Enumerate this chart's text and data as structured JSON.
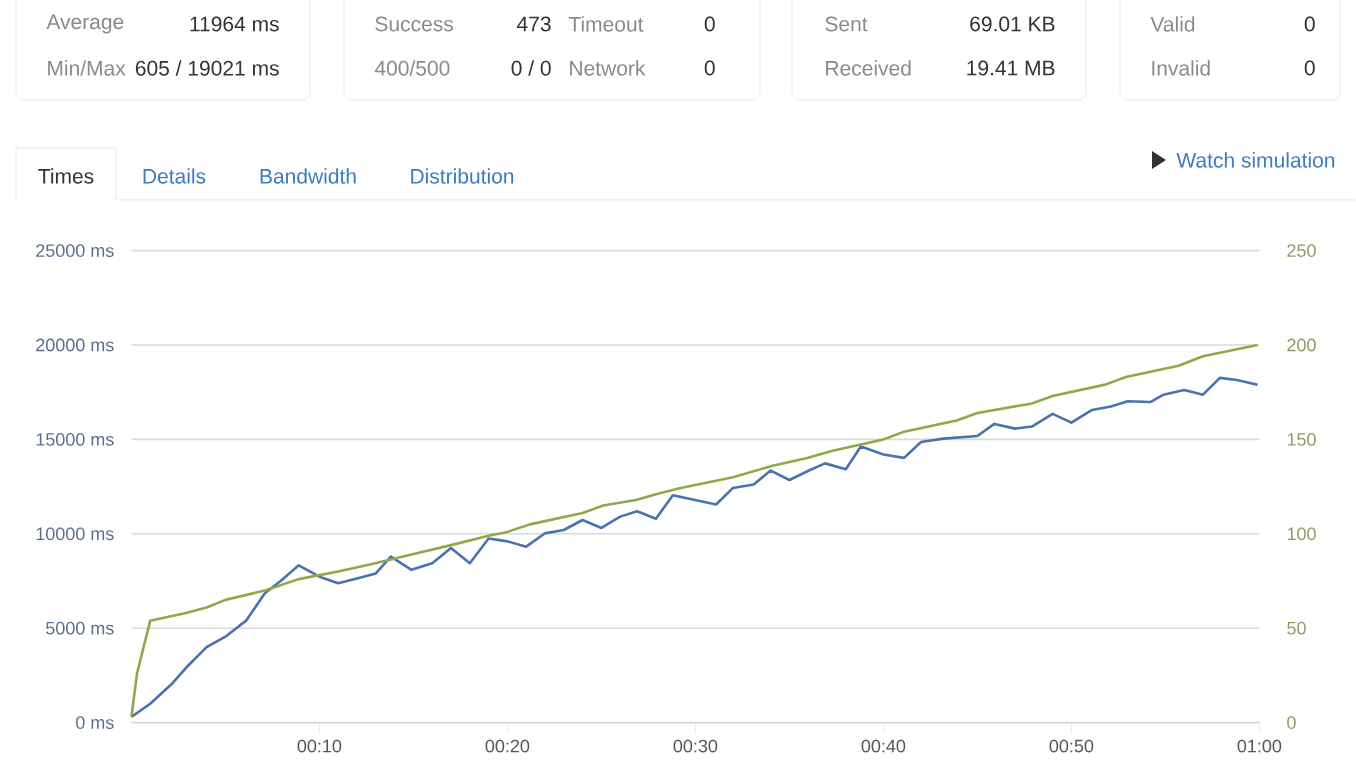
{
  "chart_data": [
    {
      "type": "other",
      "annotations": [
        "Average",
        "11964 ms",
        "Min/Max",
        "605 / 19021 ms",
        "Success",
        "473",
        "Timeout",
        "0",
        "400/500",
        "0 / 0",
        "Network",
        "0",
        "Sent",
        "69.01 KB",
        "Received",
        "19.41 MB",
        "Valid",
        "0",
        "Invalid",
        "0",
        "Times",
        "Details",
        "Bandwidth",
        "Distribution",
        "Watch simulation"
      ]
    },
    {
      "type": "line",
      "xlim": [
        0,
        60
      ],
      "xticks": [
        {
          "value": 10,
          "label": "00:10"
        },
        {
          "value": 20,
          "label": "00:20"
        },
        {
          "value": 30,
          "label": "00:30"
        },
        {
          "value": 40,
          "label": "00:40"
        },
        {
          "value": 50,
          "label": "00:50"
        },
        {
          "value": 60,
          "label": "01:00"
        }
      ],
      "ylim": [
        0,
        25000
      ],
      "yticks": [
        {
          "value": 0,
          "label": "0 ms"
        },
        {
          "value": 5000,
          "label": "5000 ms"
        },
        {
          "value": 10000,
          "label": "10000 ms"
        },
        {
          "value": 15000,
          "label": "15000 ms"
        },
        {
          "value": 20000,
          "label": "20000 ms"
        },
        {
          "value": 25000,
          "label": "25000 ms"
        }
      ],
      "y2lim": [
        0,
        250
      ],
      "y2ticks": [
        0,
        50,
        100,
        150,
        200,
        250
      ],
      "grid": "y",
      "series": [
        {
          "color": "#4a72b0",
          "x": [
            0,
            1,
            2.2,
            3,
            4,
            5,
            6.1,
            7.1,
            8,
            8.9,
            10,
            11,
            12,
            13,
            13.8,
            14.9,
            16,
            17,
            18,
            19,
            20,
            21,
            22,
            23,
            24,
            25,
            26,
            26.9,
            27.9,
            28.8,
            31.1,
            32,
            33.1,
            34,
            35,
            36.1,
            36.9,
            38,
            38.8,
            40,
            41.1,
            42,
            43.2,
            45,
            45.9,
            47,
            47.9,
            49,
            50,
            51.1,
            52.1,
            53,
            54.2,
            54.9,
            56,
            57,
            57.9,
            58.8,
            59.9
          ],
          "values": [
            300,
            1000,
            2100,
            3000,
            4000,
            4550,
            5400,
            6850,
            7550,
            8330,
            7730,
            7380,
            7630,
            7900,
            8790,
            8090,
            8440,
            9250,
            8440,
            9750,
            9600,
            9320,
            10030,
            10200,
            10730,
            10310,
            10910,
            11190,
            10800,
            12040,
            11550,
            12430,
            12610,
            13350,
            12850,
            13380,
            13730,
            13420,
            14620,
            14200,
            14020,
            14860,
            15040,
            15180,
            15820,
            15570,
            15680,
            16350,
            15890,
            16560,
            16740,
            17020,
            16980,
            17370,
            17620,
            17370,
            18260,
            18150,
            17900
          ]
        },
        {
          "color": "#8fa84a",
          "axis": "y2",
          "x": [
            0,
            0.3,
            1,
            2.9,
            4,
            5,
            7.1,
            8.9,
            11,
            12.8,
            14.9,
            17,
            19,
            20,
            21.2,
            24,
            25.1,
            26.9,
            27.9,
            29.1,
            32,
            34.1,
            35.9,
            37.3,
            40,
            41.1,
            43.9,
            45,
            47.9,
            49,
            51.8,
            52.9,
            55.7,
            57,
            59.9
          ],
          "values": [
            3,
            26,
            54,
            58,
            61,
            65,
            70,
            76,
            80,
            84,
            89,
            94,
            99,
            101,
            105,
            111,
            115,
            118,
            121,
            124,
            130,
            136,
            140,
            144,
            150,
            154,
            160,
            164,
            169,
            173,
            179,
            183,
            189,
            194,
            200
          ]
        }
      ]
    }
  ]
}
